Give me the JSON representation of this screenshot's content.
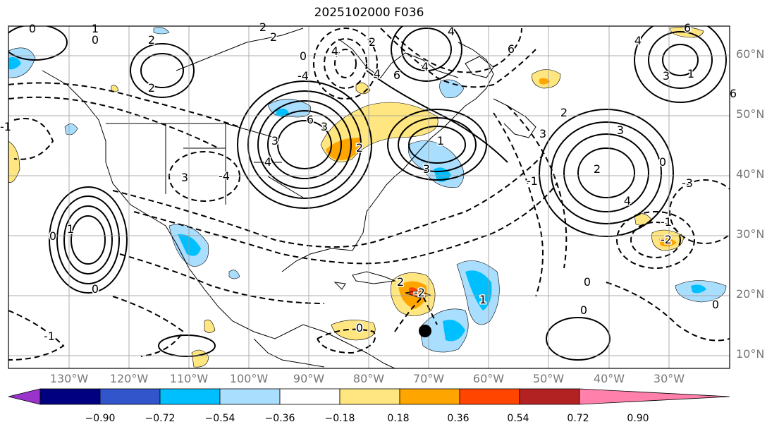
{
  "title": "2025102000 F036",
  "lat_labels": [
    "60°N",
    "50°N",
    "40°N",
    "30°N",
    "20°N",
    "10°N"
  ],
  "lon_labels": [
    "130°W",
    "120°W",
    "110°W",
    "100°W",
    "90°W",
    "80°W",
    "70°W",
    "60°W",
    "50°W",
    "40°W",
    "30°W"
  ],
  "colorbar": {
    "ticks": [
      "−0.90",
      "−0.72",
      "−0.54",
      "−0.36",
      "−0.18",
      "0.18",
      "0.36",
      "0.54",
      "0.72",
      "0.90"
    ],
    "colors": [
      "#9933cc",
      "#000080",
      "#3355cc",
      "#00bfff",
      "#aadeff",
      "#ffffff",
      "#ffe680",
      "#ffa500",
      "#ff4500",
      "#b22222",
      "#ff80aa"
    ]
  },
  "contour_labels": [
    "0",
    "1",
    "0",
    "2",
    "2",
    "2",
    "0",
    "4",
    "2",
    "4",
    "6",
    "2",
    "6",
    "4",
    "3",
    "3",
    "2",
    "1",
    "3",
    "-4",
    "3",
    "4",
    "6",
    "4",
    "-4",
    "3",
    "1",
    "4",
    "6",
    "2",
    "3",
    "3",
    "2",
    "0",
    "-1",
    "-3",
    "-1",
    "-2",
    "0",
    "1",
    "0",
    "4",
    "1",
    "2",
    "0",
    "0",
    "-1",
    "6",
    "-1",
    "0",
    "-2",
    "0"
  ],
  "marker": "storm-position-dot"
}
